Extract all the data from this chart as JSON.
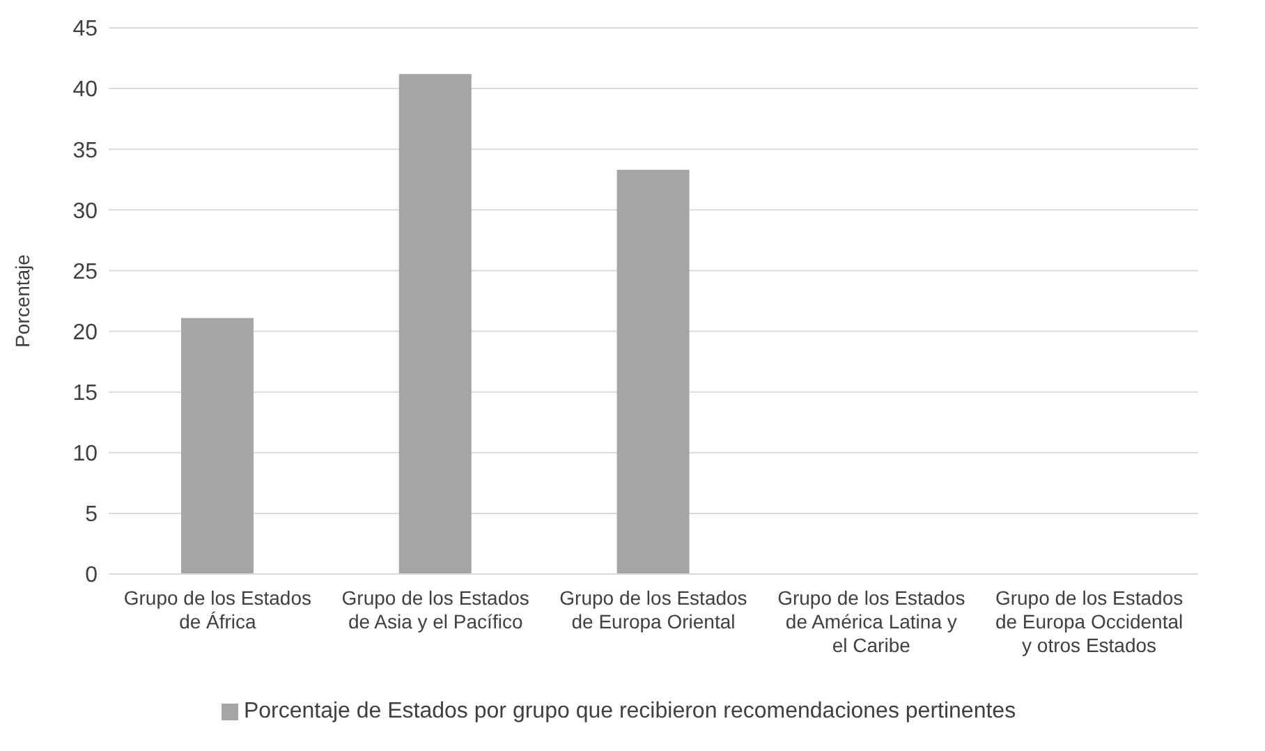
{
  "chart_data": {
    "type": "bar",
    "ylabel": "Porcentaje",
    "categories": [
      "Grupo de los Estados de África",
      "Grupo de los Estados de Asia y el Pacífico",
      "Grupo de los Estados de Europa Oriental",
      "Grupo de los Estados de América Latina y el Caribe",
      "Grupo de los Estados de Europa Occidental y otros Estados"
    ],
    "series": [
      {
        "name": "Porcentaje de Estados por grupo que recibieron recomendaciones pertinentes",
        "color": "#a5a5a5",
        "values": [
          21.1,
          41.2,
          33.3,
          0,
          0
        ]
      }
    ],
    "ylim": [
      0,
      45
    ],
    "yticks": [
      0,
      5,
      10,
      15,
      20,
      25,
      30,
      35,
      40,
      45
    ],
    "grid": "y",
    "legend": "bottom"
  }
}
